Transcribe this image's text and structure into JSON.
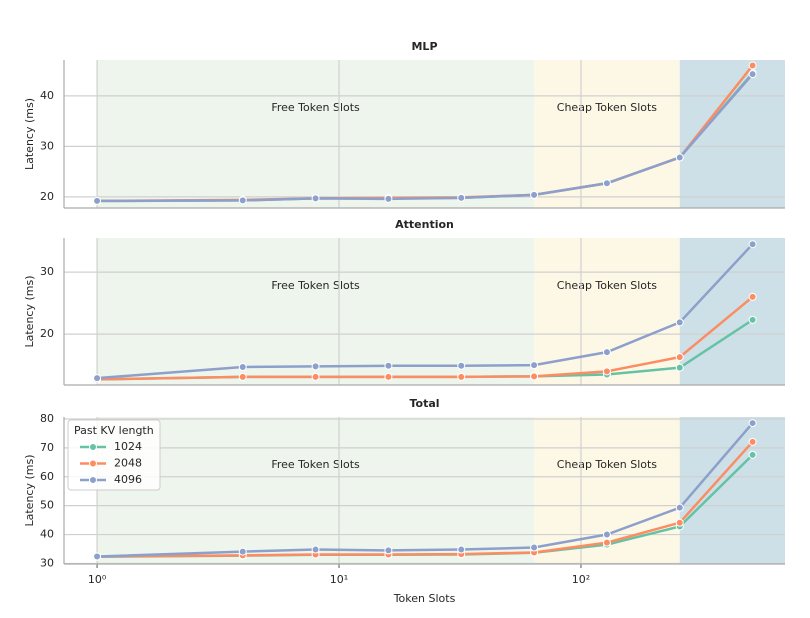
{
  "chart_data": [
    {
      "type": "line",
      "title": "MLP",
      "ylabel": "Latency (ms)",
      "xscale": "log",
      "grid": true,
      "x": [
        1,
        4,
        8,
        16,
        32,
        64,
        128,
        256,
        512
      ],
      "xlim": [
        0.73,
        697
      ],
      "xticks": [
        1,
        10,
        100
      ],
      "ylim": [
        17.8,
        47.1
      ],
      "yticks": [
        20,
        30,
        40
      ],
      "regions": [
        {
          "x0": 1,
          "x1": 64,
          "label": "Free Token Slots",
          "color": "#eef5ec"
        },
        {
          "x0": 64,
          "x1": 256,
          "label": "Cheap Token Slots",
          "color": "#fdf8e6"
        },
        {
          "x0": 256,
          "x1": 697,
          "color": "#cde0e8"
        }
      ],
      "series": [
        {
          "color": "#66c2a5",
          "values": [
            19.2,
            19.3,
            19.7,
            19.7,
            19.8,
            20.4,
            22.7,
            27.8,
            44.5
          ]
        },
        {
          "color": "#fc8d62",
          "values": [
            19.2,
            19.4,
            19.7,
            19.8,
            19.9,
            20.4,
            22.7,
            27.8,
            46.0
          ]
        },
        {
          "color": "#8da0cb",
          "values": [
            19.2,
            19.3,
            19.7,
            19.6,
            19.8,
            20.4,
            22.7,
            27.8,
            44.3
          ]
        }
      ]
    },
    {
      "type": "line",
      "title": "Attention",
      "ylabel": "Latency (ms)",
      "xscale": "log",
      "grid": true,
      "x": [
        1,
        4,
        8,
        16,
        32,
        64,
        128,
        256,
        512
      ],
      "xlim": [
        0.73,
        697
      ],
      "xticks": [
        1,
        10,
        100
      ],
      "ylim": [
        11.8,
        35.5
      ],
      "yticks": [
        20,
        30
      ],
      "regions": [
        {
          "x0": 1,
          "x1": 64,
          "label": "Free Token Slots",
          "color": "#eef5ec"
        },
        {
          "x0": 64,
          "x1": 256,
          "label": "Cheap Token Slots",
          "color": "#fdf8e6"
        },
        {
          "x0": 256,
          "x1": 697,
          "color": "#cde0e8"
        }
      ],
      "series": [
        {
          "color": "#66c2a5",
          "values": [
            12.7,
            13.1,
            13.1,
            13.1,
            13.1,
            13.2,
            13.5,
            14.6,
            22.3
          ]
        },
        {
          "color": "#fc8d62",
          "values": [
            12.7,
            13.1,
            13.1,
            13.1,
            13.1,
            13.2,
            14.0,
            16.3,
            26.0
          ]
        },
        {
          "color": "#8da0cb",
          "values": [
            12.9,
            14.7,
            14.8,
            14.9,
            14.9,
            15.0,
            17.1,
            21.9,
            34.5
          ]
        }
      ]
    },
    {
      "type": "line",
      "title": "Total",
      "ylabel": "Latency (ms)",
      "xlabel": "Token Slots",
      "xscale": "log",
      "grid": true,
      "x": [
        1,
        4,
        8,
        16,
        32,
        64,
        128,
        256,
        512
      ],
      "xlim": [
        0.73,
        697
      ],
      "xticks": [
        {
          "value": 1,
          "label": "10⁰"
        },
        {
          "value": 10,
          "label": "10¹"
        },
        {
          "value": 100,
          "label": "10²"
        }
      ],
      "ylim": [
        29.8,
        80.7
      ],
      "yticks": [
        30,
        40,
        50,
        60,
        70,
        80
      ],
      "legend_title": "Past KV length",
      "legend": "upper left",
      "regions": [
        {
          "x0": 1,
          "x1": 64,
          "label": "Free Token Slots",
          "color": "#eef5ec"
        },
        {
          "x0": 64,
          "x1": 256,
          "label": "Cheap Token Slots",
          "color": "#fdf8e6"
        },
        {
          "x0": 256,
          "x1": 697,
          "color": "#cde0e8"
        }
      ],
      "series": [
        {
          "name": "1024",
          "color": "#66c2a5",
          "values": [
            32.3,
            32.7,
            33.0,
            33.0,
            33.1,
            33.7,
            36.5,
            42.8,
            67.6
          ]
        },
        {
          "name": "2048",
          "color": "#fc8d62",
          "values": [
            32.4,
            32.8,
            33.1,
            33.1,
            33.2,
            33.8,
            37.2,
            44.1,
            72.1
          ]
        },
        {
          "name": "4096",
          "color": "#8da0cb",
          "values": [
            32.4,
            34.1,
            34.8,
            34.5,
            34.8,
            35.5,
            40.0,
            49.3,
            78.6
          ]
        }
      ]
    }
  ]
}
